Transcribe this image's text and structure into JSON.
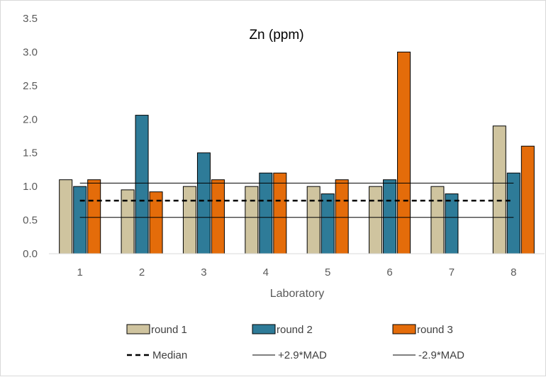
{
  "chart_data": {
    "type": "bar",
    "title": "Zn (ppm)",
    "xlabel": "Laboratory",
    "ylabel": "",
    "categories": [
      "1",
      "2",
      "3",
      "4",
      "5",
      "6",
      "7",
      "8"
    ],
    "ylim": [
      0,
      3.5
    ],
    "yticks": [
      "0.0",
      "0.5",
      "1.0",
      "1.5",
      "2.0",
      "2.5",
      "3.0",
      "3.5"
    ],
    "grid": false,
    "legend_position": "bottom",
    "series": [
      {
        "name": "round 1",
        "color": "#cfc49f",
        "values": [
          1.1,
          0.95,
          1.0,
          1.0,
          1.0,
          1.0,
          1.0,
          1.9
        ]
      },
      {
        "name": "round 2",
        "color": "#2e7b98",
        "values": [
          1.0,
          2.06,
          1.5,
          1.2,
          0.89,
          1.1,
          0.89,
          1.2
        ]
      },
      {
        "name": "round 3",
        "color": "#e46c0a",
        "values": [
          1.1,
          0.92,
          1.1,
          1.2,
          1.1,
          3.0,
          null,
          1.6
        ]
      }
    ],
    "lines": [
      {
        "name": "Median",
        "value": 0.79,
        "style": "dashed"
      },
      {
        "name": "+2.9*MAD",
        "value": 1.05,
        "style": "solid"
      },
      {
        "name": "-2.9*MAD",
        "value": 0.54,
        "style": "solid"
      }
    ]
  }
}
